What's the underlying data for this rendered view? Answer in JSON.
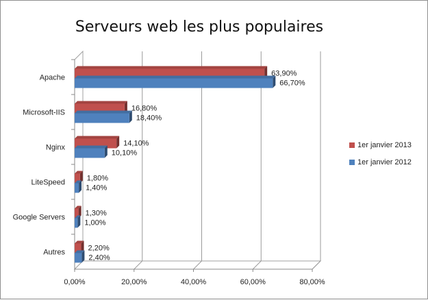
{
  "colors": {
    "series_2013": "#c0504d",
    "series_2012": "#4f81bd"
  },
  "chart_data": {
    "type": "bar",
    "orientation": "horizontal",
    "title": "Serveurs web les plus populaires",
    "categories": [
      "Apache",
      "Microsoft-IIS",
      "Nginx",
      "LiteSpeed",
      "Google Servers",
      "Autres"
    ],
    "series": [
      {
        "name": "1er janvier 2013",
        "values": [
          63.9,
          16.8,
          14.1,
          1.8,
          1.3,
          2.2
        ],
        "labels": [
          "63,90%",
          "16,80%",
          "14,10%",
          "1,80%",
          "1,30%",
          "2,20%"
        ]
      },
      {
        "name": "1er janvier 2012",
        "values": [
          66.7,
          18.4,
          10.1,
          1.4,
          1.0,
          2.4
        ],
        "labels": [
          "66,70%",
          "18,40%",
          "10,10%",
          "1,40%",
          "1,00%",
          "2,40%"
        ]
      }
    ],
    "xlim": [
      0,
      80
    ],
    "ticks": [
      {
        "value": 0,
        "label": "0,00%"
      },
      {
        "value": 20,
        "label": "20,00%"
      },
      {
        "value": 40,
        "label": "40,00%"
      },
      {
        "value": 60,
        "label": "60,00%"
      },
      {
        "value": 80,
        "label": "80,00%"
      }
    ],
    "grid": true,
    "legend_position": "right",
    "style": "3d-clustered"
  }
}
